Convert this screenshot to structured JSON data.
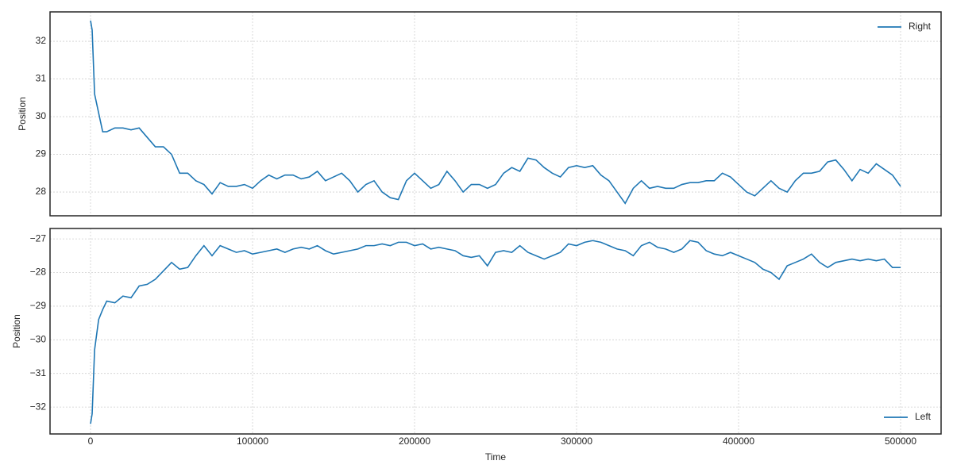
{
  "chart_data": [
    {
      "type": "line",
      "legend": "upper right",
      "grid": true,
      "show_xtick_labels": false,
      "ylabel": "Position",
      "xlim": [
        -25000,
        525000
      ],
      "ylim": [
        27.37,
        32.78
      ],
      "xticks": [
        0,
        100000,
        200000,
        300000,
        400000,
        500000
      ],
      "yticks": [
        28,
        29,
        30,
        31,
        32
      ],
      "x": [
        0,
        1000,
        2500,
        5000,
        7500,
        10000,
        15000,
        20000,
        25000,
        30000,
        35000,
        40000,
        45000,
        50000,
        55000,
        60000,
        65000,
        70000,
        75000,
        80000,
        85000,
        90000,
        95000,
        100000,
        105000,
        110000,
        115000,
        120000,
        125000,
        130000,
        135000,
        140000,
        145000,
        150000,
        155000,
        160000,
        165000,
        170000,
        175000,
        180000,
        185000,
        190000,
        195000,
        200000,
        205000,
        210000,
        215000,
        220000,
        225000,
        230000,
        235000,
        240000,
        245000,
        250000,
        255000,
        260000,
        265000,
        270000,
        275000,
        280000,
        285000,
        290000,
        295000,
        300000,
        305000,
        310000,
        315000,
        320000,
        325000,
        330000,
        335000,
        340000,
        345000,
        350000,
        355000,
        360000,
        365000,
        370000,
        375000,
        380000,
        385000,
        390000,
        395000,
        400000,
        405000,
        410000,
        415000,
        420000,
        425000,
        430000,
        435000,
        440000,
        445000,
        450000,
        455000,
        460000,
        465000,
        470000,
        475000,
        480000,
        485000,
        490000,
        495000,
        500000
      ],
      "series": [
        {
          "name": "Right",
          "color": "#1f77b4",
          "values": [
            32.55,
            32.3,
            30.6,
            30.1,
            29.6,
            29.6,
            29.7,
            29.7,
            29.65,
            29.7,
            29.45,
            29.2,
            29.2,
            29.0,
            28.5,
            28.5,
            28.3,
            28.2,
            27.95,
            28.25,
            28.15,
            28.15,
            28.2,
            28.1,
            28.3,
            28.45,
            28.35,
            28.45,
            28.45,
            28.35,
            28.4,
            28.55,
            28.3,
            28.4,
            28.5,
            28.3,
            28.0,
            28.2,
            28.3,
            28.0,
            27.85,
            27.8,
            28.3,
            28.5,
            28.3,
            28.1,
            28.2,
            28.55,
            28.3,
            28.0,
            28.2,
            28.2,
            28.1,
            28.2,
            28.5,
            28.65,
            28.55,
            28.9,
            28.85,
            28.65,
            28.5,
            28.4,
            28.65,
            28.7,
            28.65,
            28.7,
            28.45,
            28.3,
            28.0,
            27.7,
            28.1,
            28.3,
            28.1,
            28.15,
            28.1,
            28.1,
            28.2,
            28.25,
            28.25,
            28.3,
            28.3,
            28.5,
            28.4,
            28.2,
            28.0,
            27.9,
            28.1,
            28.3,
            28.1,
            28.0,
            28.3,
            28.5,
            28.5,
            28.55,
            28.8,
            28.85,
            28.6,
            28.3,
            28.6,
            28.5,
            28.75,
            28.6,
            28.45,
            28.15
          ]
        }
      ]
    },
    {
      "type": "line",
      "legend": "lower right",
      "grid": true,
      "show_xtick_labels": true,
      "ylabel": "Position",
      "xlabel": "Time",
      "xlim": [
        -25000,
        525000
      ],
      "ylim": [
        -32.8,
        -26.69
      ],
      "xticks": [
        0,
        100000,
        200000,
        300000,
        400000,
        500000
      ],
      "yticks": [
        {
          "value": -32,
          "label": "−32"
        },
        {
          "value": -31,
          "label": "−31"
        },
        {
          "value": -30,
          "label": "−30"
        },
        {
          "value": -29,
          "label": "−29"
        },
        {
          "value": -28,
          "label": "−28"
        },
        {
          "value": -27,
          "label": "−27"
        }
      ],
      "x": [
        0,
        1000,
        2500,
        5000,
        7500,
        10000,
        15000,
        20000,
        25000,
        30000,
        35000,
        40000,
        45000,
        50000,
        55000,
        60000,
        65000,
        70000,
        75000,
        80000,
        85000,
        90000,
        95000,
        100000,
        105000,
        110000,
        115000,
        120000,
        125000,
        130000,
        135000,
        140000,
        145000,
        150000,
        155000,
        160000,
        165000,
        170000,
        175000,
        180000,
        185000,
        190000,
        195000,
        200000,
        205000,
        210000,
        215000,
        220000,
        225000,
        230000,
        235000,
        240000,
        245000,
        250000,
        255000,
        260000,
        265000,
        270000,
        275000,
        280000,
        285000,
        290000,
        295000,
        300000,
        305000,
        310000,
        315000,
        320000,
        325000,
        330000,
        335000,
        340000,
        345000,
        350000,
        355000,
        360000,
        365000,
        370000,
        375000,
        380000,
        385000,
        390000,
        395000,
        400000,
        405000,
        410000,
        415000,
        420000,
        425000,
        430000,
        435000,
        440000,
        445000,
        450000,
        455000,
        460000,
        465000,
        470000,
        475000,
        480000,
        485000,
        490000,
        495000,
        500000
      ],
      "series": [
        {
          "name": "Left",
          "color": "#1f77b4",
          "values": [
            -32.5,
            -32.2,
            -30.3,
            -29.4,
            -29.1,
            -28.85,
            -28.9,
            -28.7,
            -28.75,
            -28.4,
            -28.35,
            -28.2,
            -27.95,
            -27.7,
            -27.9,
            -27.85,
            -27.5,
            -27.2,
            -27.5,
            -27.2,
            -27.3,
            -27.4,
            -27.35,
            -27.45,
            -27.4,
            -27.35,
            -27.3,
            -27.4,
            -27.3,
            -27.25,
            -27.3,
            -27.2,
            -27.35,
            -27.45,
            -27.4,
            -27.35,
            -27.3,
            -27.2,
            -27.2,
            -27.15,
            -27.2,
            -27.1,
            -27.1,
            -27.2,
            -27.15,
            -27.3,
            -27.25,
            -27.3,
            -27.35,
            -27.5,
            -27.55,
            -27.5,
            -27.8,
            -27.4,
            -27.35,
            -27.4,
            -27.2,
            -27.4,
            -27.5,
            -27.6,
            -27.5,
            -27.4,
            -27.15,
            -27.2,
            -27.1,
            -27.05,
            -27.1,
            -27.2,
            -27.3,
            -27.35,
            -27.5,
            -27.2,
            -27.1,
            -27.25,
            -27.3,
            -27.4,
            -27.3,
            -27.05,
            -27.1,
            -27.35,
            -27.45,
            -27.5,
            -27.4,
            -27.5,
            -27.6,
            -27.7,
            -27.9,
            -28.0,
            -28.2,
            -27.8,
            -27.7,
            -27.6,
            -27.45,
            -27.7,
            -27.85,
            -27.7,
            -27.65,
            -27.6,
            -27.65,
            -27.6,
            -27.65,
            -27.6,
            -27.85,
            -27.85
          ]
        }
      ]
    }
  ]
}
